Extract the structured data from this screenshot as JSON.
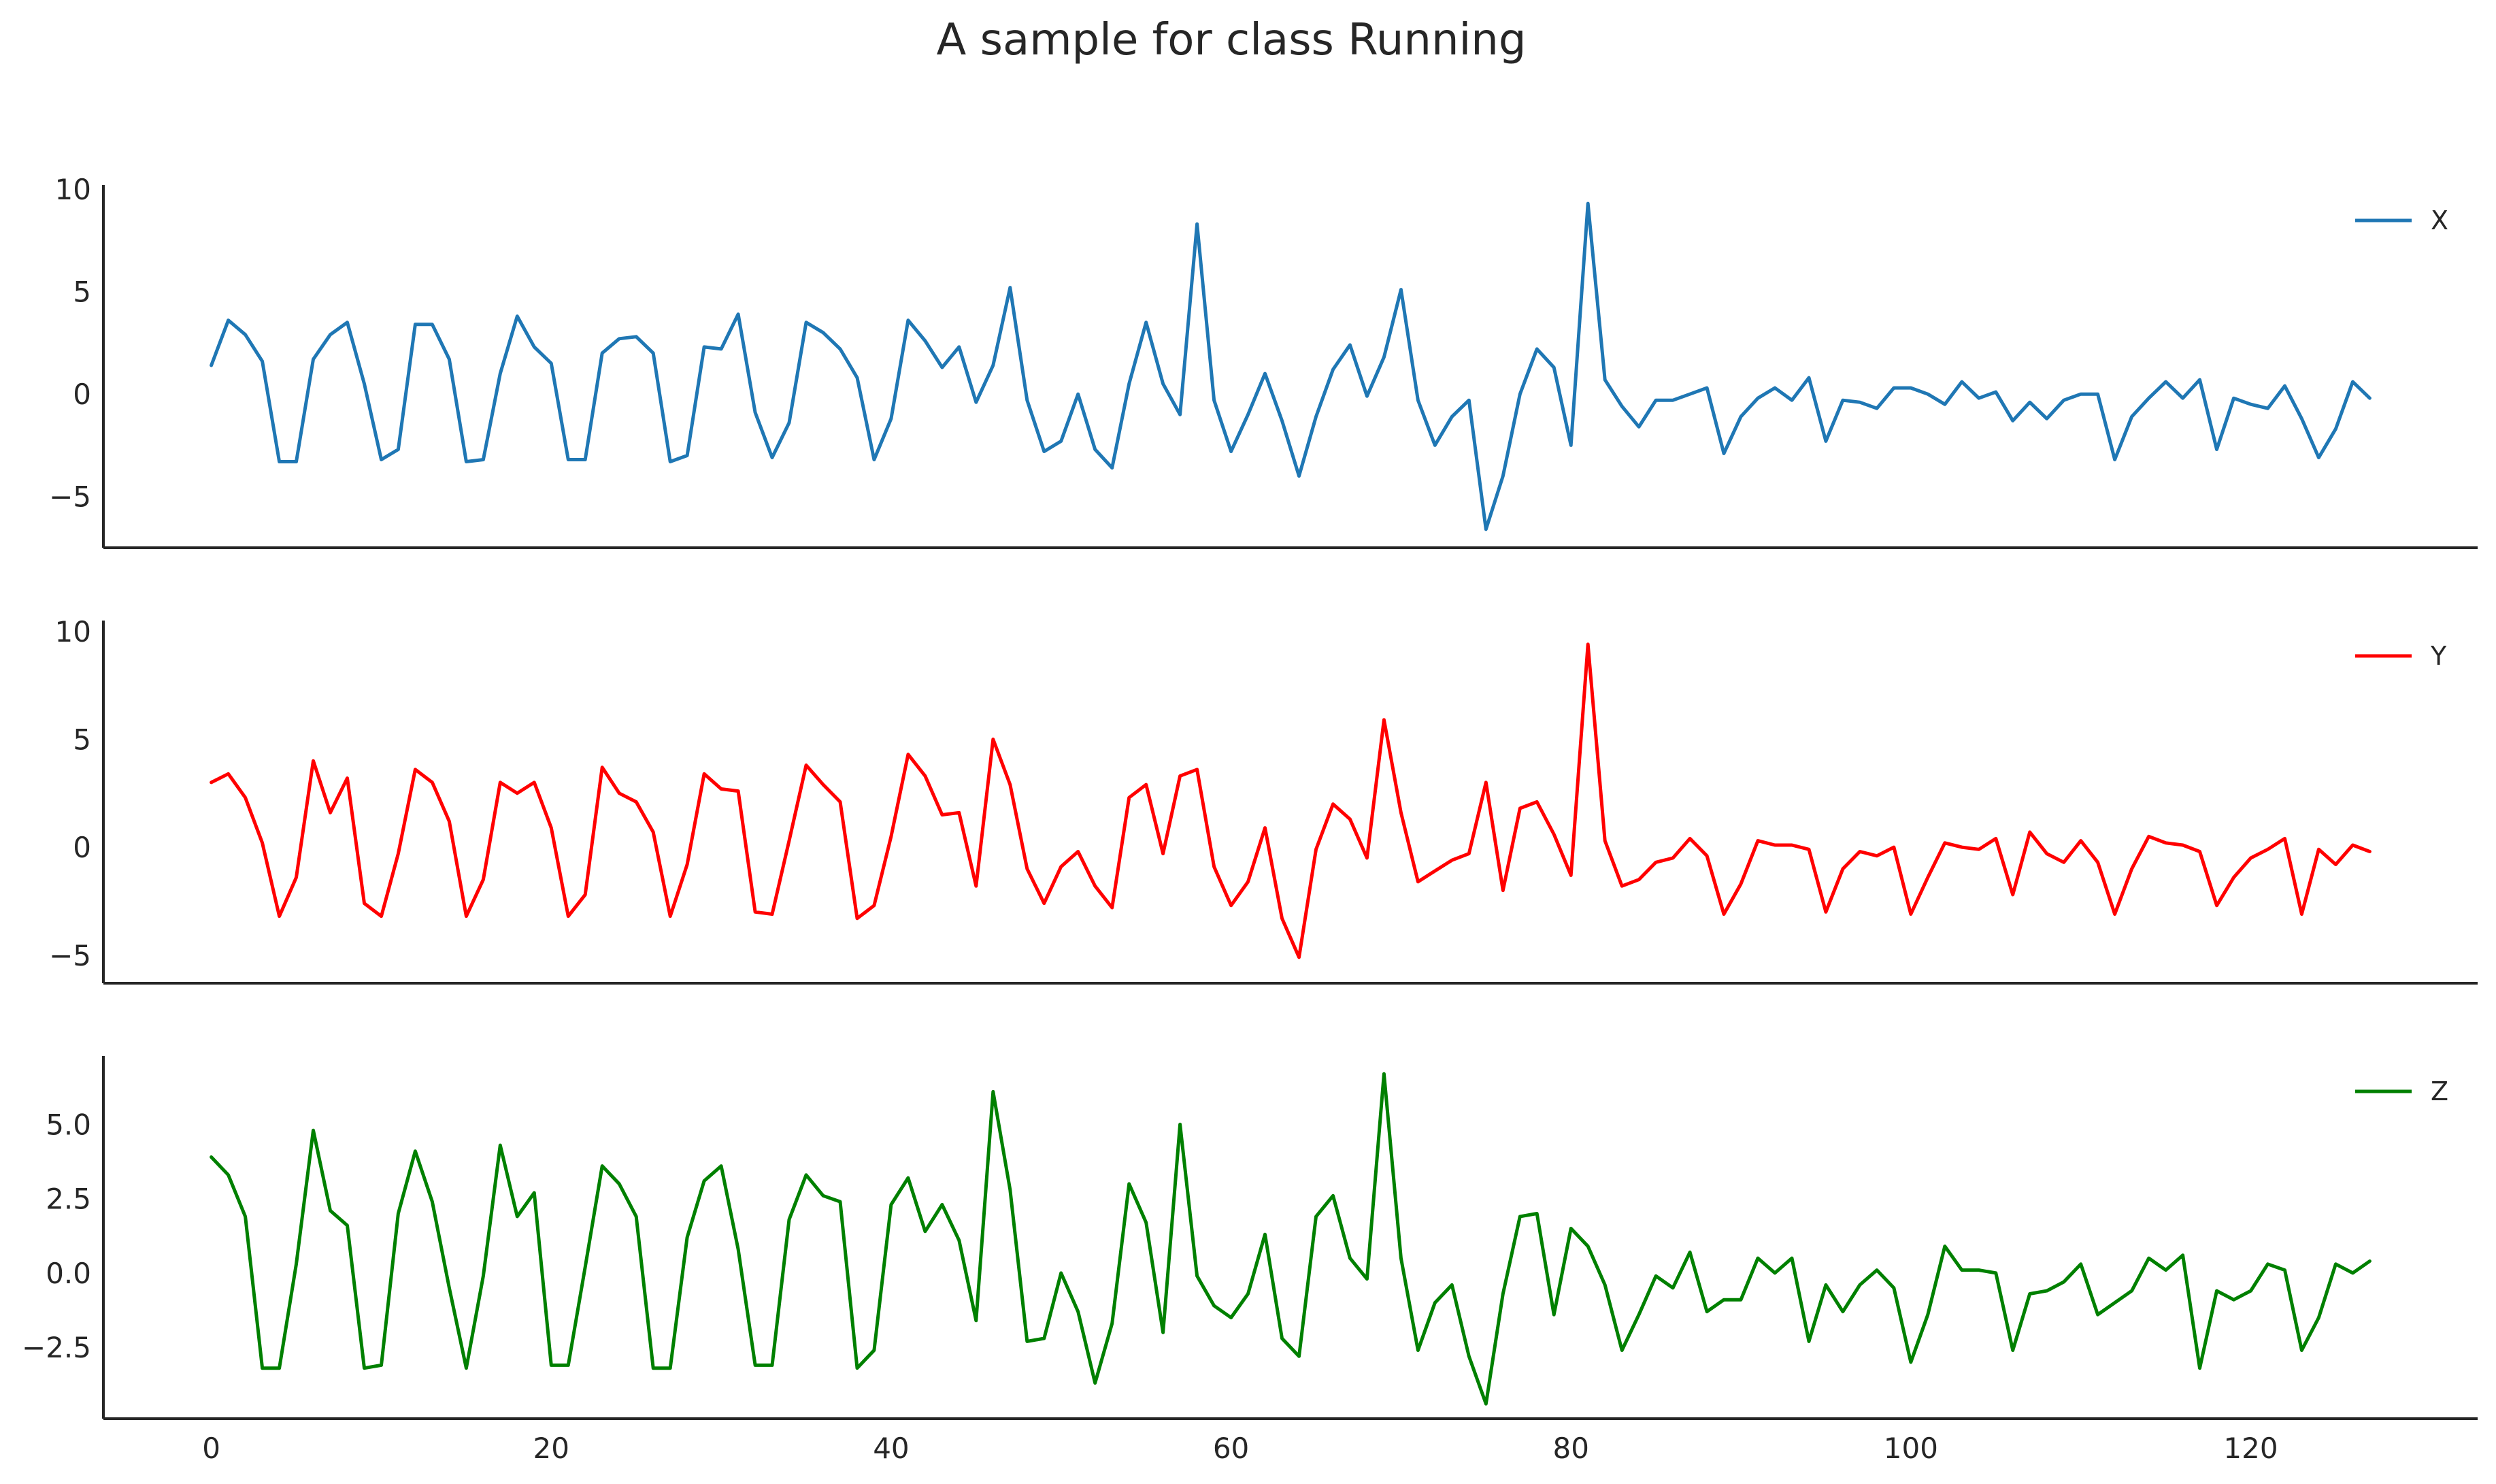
{
  "title": "A sample for class Running",
  "chart_data": [
    {
      "type": "line",
      "xlim": [
        -6.35,
        133.35
      ],
      "ylim": [
        -7.5,
        10.2
      ],
      "yticks": [
        -5,
        0,
        5,
        10
      ],
      "ytick_labels": [
        "−5",
        "0",
        "5",
        "10"
      ],
      "xticks": [],
      "xtick_labels": [],
      "legend": "right",
      "grid": false,
      "series": [
        {
          "name": "X",
          "color": "#1f77b4",
          "x": [
            0,
            1,
            2,
            3,
            4,
            5,
            6,
            7,
            8,
            9,
            10,
            11,
            12,
            13,
            14,
            15,
            16,
            17,
            18,
            19,
            20,
            21,
            22,
            23,
            24,
            25,
            26,
            27,
            28,
            29,
            30,
            31,
            32,
            33,
            34,
            35,
            36,
            37,
            38,
            39,
            40,
            41,
            42,
            43,
            44,
            45,
            46,
            47,
            48,
            49,
            50,
            51,
            52,
            53,
            54,
            55,
            56,
            57,
            58,
            59,
            60,
            61,
            62,
            63,
            64,
            65,
            66,
            67,
            68,
            69,
            70,
            71,
            72,
            73,
            74,
            75,
            76,
            77,
            78,
            79,
            80,
            81,
            82,
            83,
            84,
            85,
            86,
            87,
            88,
            89,
            90,
            91,
            92,
            93,
            94,
            95,
            96,
            97,
            98,
            99,
            100,
            101,
            102,
            103,
            104,
            105,
            106,
            107,
            108,
            109,
            110,
            111,
            112,
            113,
            114,
            115,
            116,
            117,
            118,
            119,
            120,
            121,
            122,
            123,
            124,
            125,
            126,
            127
          ],
          "values": [
            1.4,
            3.6,
            2.9,
            1.6,
            -3.3,
            -3.3,
            1.7,
            2.9,
            3.5,
            0.5,
            -3.2,
            -2.7,
            3.4,
            3.4,
            1.7,
            -3.3,
            -3.2,
            1.0,
            3.8,
            2.3,
            1.5,
            -3.2,
            -3.2,
            2.0,
            2.7,
            2.8,
            2.0,
            -3.3,
            -3.0,
            2.3,
            2.2,
            3.9,
            -0.9,
            -3.1,
            -1.4,
            3.5,
            3.0,
            2.2,
            0.8,
            -3.2,
            -1.2,
            3.6,
            2.6,
            1.3,
            2.3,
            -0.4,
            1.4,
            5.2,
            -0.3,
            -2.8,
            -2.3,
            0.0,
            -2.7,
            -3.6,
            0.5,
            3.5,
            0.5,
            -1.0,
            8.3,
            -0.3,
            -2.8,
            -1.0,
            1.0,
            -1.3,
            -4.0,
            -1.1,
            1.2,
            2.4,
            -0.1,
            1.8,
            5.1,
            -0.3,
            -2.5,
            -1.1,
            -0.3,
            -6.6,
            -4.0,
            0.0,
            2.2,
            1.3,
            -2.5,
            9.3,
            0.7,
            -0.6,
            -1.6,
            -0.3,
            -0.3,
            0.0,
            0.3,
            -2.9,
            -1.1,
            -0.2,
            0.3,
            -0.3,
            0.8,
            -2.3,
            -0.3,
            -0.4,
            -0.7,
            0.3,
            0.3,
            0.0,
            -0.5,
            0.6,
            -0.2,
            0.1,
            -1.3,
            -0.4,
            -1.2,
            -0.3,
            0.0,
            0.0,
            -3.2,
            -1.1,
            -0.2,
            0.6,
            -0.2,
            0.7,
            -2.7,
            -0.2,
            -0.5,
            -0.7,
            0.4,
            -1.2,
            -3.1,
            -1.7,
            0.6,
            -0.2
          ]
        }
      ]
    },
    {
      "type": "line",
      "xlim": [
        -6.35,
        133.35
      ],
      "ylim": [
        -6.3,
        10.5
      ],
      "yticks": [
        -5,
        0,
        5,
        10
      ],
      "ytick_labels": [
        "−5",
        "0",
        "5",
        "10"
      ],
      "xticks": [],
      "xtick_labels": [],
      "legend": "right",
      "grid": false,
      "series": [
        {
          "name": "Y",
          "color": "#ff0000",
          "x": [
            0,
            1,
            2,
            3,
            4,
            5,
            6,
            7,
            8,
            9,
            10,
            11,
            12,
            13,
            14,
            15,
            16,
            17,
            18,
            19,
            20,
            21,
            22,
            23,
            24,
            25,
            26,
            27,
            28,
            29,
            30,
            31,
            32,
            33,
            34,
            35,
            36,
            37,
            38,
            39,
            40,
            41,
            42,
            43,
            44,
            45,
            46,
            47,
            48,
            49,
            50,
            51,
            52,
            53,
            54,
            55,
            56,
            57,
            58,
            59,
            60,
            61,
            62,
            63,
            64,
            65,
            66,
            67,
            68,
            69,
            70,
            71,
            72,
            73,
            74,
            75,
            76,
            77,
            78,
            79,
            80,
            81,
            82,
            83,
            84,
            85,
            86,
            87,
            88,
            89,
            90,
            91,
            92,
            93,
            94,
            95,
            96,
            97,
            98,
            99,
            100,
            101,
            102,
            103,
            104,
            105,
            106,
            107,
            108,
            109,
            110,
            111,
            112,
            113,
            114,
            115,
            116,
            117,
            118,
            119,
            120,
            121,
            122,
            123,
            124,
            125,
            126,
            127
          ],
          "values": [
            3.0,
            3.4,
            2.3,
            0.2,
            -3.2,
            -1.4,
            4.0,
            1.6,
            3.2,
            -2.6,
            -3.2,
            -0.3,
            3.6,
            3.0,
            1.2,
            -3.2,
            -1.5,
            3.0,
            2.5,
            3.0,
            0.9,
            -3.2,
            -2.2,
            3.7,
            2.5,
            2.1,
            0.7,
            -3.2,
            -0.8,
            3.4,
            2.7,
            2.6,
            -3.0,
            -3.1,
            0.3,
            3.8,
            2.9,
            2.1,
            -3.3,
            -2.7,
            0.5,
            4.3,
            3.3,
            1.5,
            1.6,
            -1.8,
            5.0,
            2.9,
            -1.0,
            -2.6,
            -0.9,
            -0.2,
            -1.8,
            -2.8,
            2.3,
            2.9,
            -0.3,
            3.3,
            3.6,
            -0.9,
            -2.7,
            -1.6,
            0.9,
            -3.3,
            -5.1,
            -0.1,
            2.0,
            1.3,
            -0.5,
            5.9,
            1.6,
            -1.6,
            -1.1,
            -0.6,
            -0.3,
            3.0,
            -2.0,
            1.8,
            2.1,
            0.6,
            -1.3,
            9.4,
            0.3,
            -1.8,
            -1.5,
            -0.7,
            -0.5,
            0.4,
            -0.4,
            -3.1,
            -1.7,
            0.3,
            0.1,
            0.1,
            -0.1,
            -3.0,
            -1.0,
            -0.2,
            -0.4,
            0.0,
            -3.1,
            -1.4,
            0.2,
            0.0,
            -0.1,
            0.4,
            -2.2,
            0.7,
            -0.3,
            -0.7,
            0.3,
            -0.7,
            -3.1,
            -1.0,
            0.5,
            0.2,
            0.1,
            -0.2,
            -2.7,
            -1.4,
            -0.5,
            -0.1,
            0.4,
            -3.1,
            -0.1,
            -0.8,
            0.1,
            -0.2
          ]
        }
      ]
    },
    {
      "type": "line",
      "xlim": [
        -6.35,
        133.35
      ],
      "ylim": [
        -4.9,
        7.3
      ],
      "yticks": [
        -2.5,
        0.0,
        2.5,
        5.0
      ],
      "ytick_labels": [
        "−2.5",
        "0.0",
        "2.5",
        "5.0"
      ],
      "xticks": [
        0,
        20,
        40,
        60,
        80,
        100,
        120
      ],
      "xtick_labels": [
        "0",
        "20",
        "40",
        "60",
        "80",
        "100",
        "120"
      ],
      "legend": "right",
      "grid": false,
      "series": [
        {
          "name": "Z",
          "color": "#008000",
          "x": [
            0,
            1,
            2,
            3,
            4,
            5,
            6,
            7,
            8,
            9,
            10,
            11,
            12,
            13,
            14,
            15,
            16,
            17,
            18,
            19,
            20,
            21,
            22,
            23,
            24,
            25,
            26,
            27,
            28,
            29,
            30,
            31,
            32,
            33,
            34,
            35,
            36,
            37,
            38,
            39,
            40,
            41,
            42,
            43,
            44,
            45,
            46,
            47,
            48,
            49,
            50,
            51,
            52,
            53,
            54,
            55,
            56,
            57,
            58,
            59,
            60,
            61,
            62,
            63,
            64,
            65,
            66,
            67,
            68,
            69,
            70,
            71,
            72,
            73,
            74,
            75,
            76,
            77,
            78,
            79,
            80,
            81,
            82,
            83,
            84,
            85,
            86,
            87,
            88,
            89,
            90,
            91,
            92,
            93,
            94,
            95,
            96,
            97,
            98,
            99,
            100,
            101,
            102,
            103,
            104,
            105,
            106,
            107,
            108,
            109,
            110,
            111,
            112,
            113,
            114,
            115,
            116,
            117,
            118,
            119,
            120,
            121,
            122,
            123,
            124,
            125,
            126,
            127
          ],
          "values": [
            3.9,
            3.3,
            1.9,
            -3.2,
            -3.2,
            0.3,
            4.8,
            2.1,
            1.6,
            -3.2,
            -3.1,
            2.0,
            4.1,
            2.4,
            -0.5,
            -3.2,
            -0.1,
            4.3,
            1.9,
            2.7,
            -3.1,
            -3.1,
            0.2,
            3.6,
            3.0,
            1.9,
            -3.2,
            -3.2,
            1.2,
            3.1,
            3.6,
            0.8,
            -3.1,
            -3.1,
            1.8,
            3.3,
            2.6,
            2.4,
            -3.2,
            -2.6,
            2.3,
            3.2,
            1.4,
            2.3,
            1.1,
            -1.6,
            6.1,
            2.8,
            -2.3,
            -2.2,
            0.0,
            -1.3,
            -3.7,
            -1.7,
            3.0,
            1.7,
            -2.0,
            5.0,
            -0.1,
            -1.1,
            -1.5,
            -0.7,
            1.3,
            -2.2,
            -2.8,
            1.9,
            2.6,
            0.5,
            -0.2,
            6.7,
            0.5,
            -2.6,
            -1.0,
            -0.4,
            -2.8,
            -4.4,
            -0.7,
            1.9,
            2.0,
            -1.4,
            1.5,
            0.9,
            -0.4,
            -2.6,
            -1.4,
            -0.1,
            -0.5,
            0.7,
            -1.3,
            -0.9,
            -0.9,
            0.5,
            0.0,
            0.5,
            -2.3,
            -0.4,
            -1.3,
            -0.4,
            0.1,
            -0.5,
            -3.0,
            -1.4,
            0.9,
            0.1,
            0.1,
            0.0,
            -2.6,
            -0.7,
            -0.6,
            -0.3,
            0.3,
            -1.4,
            -1.0,
            -0.6,
            0.5,
            0.1,
            0.6,
            -3.2,
            -0.6,
            -0.9,
            -0.6,
            0.3,
            0.1,
            -2.6,
            -1.5,
            0.3,
            0.0,
            0.4
          ]
        }
      ]
    }
  ]
}
